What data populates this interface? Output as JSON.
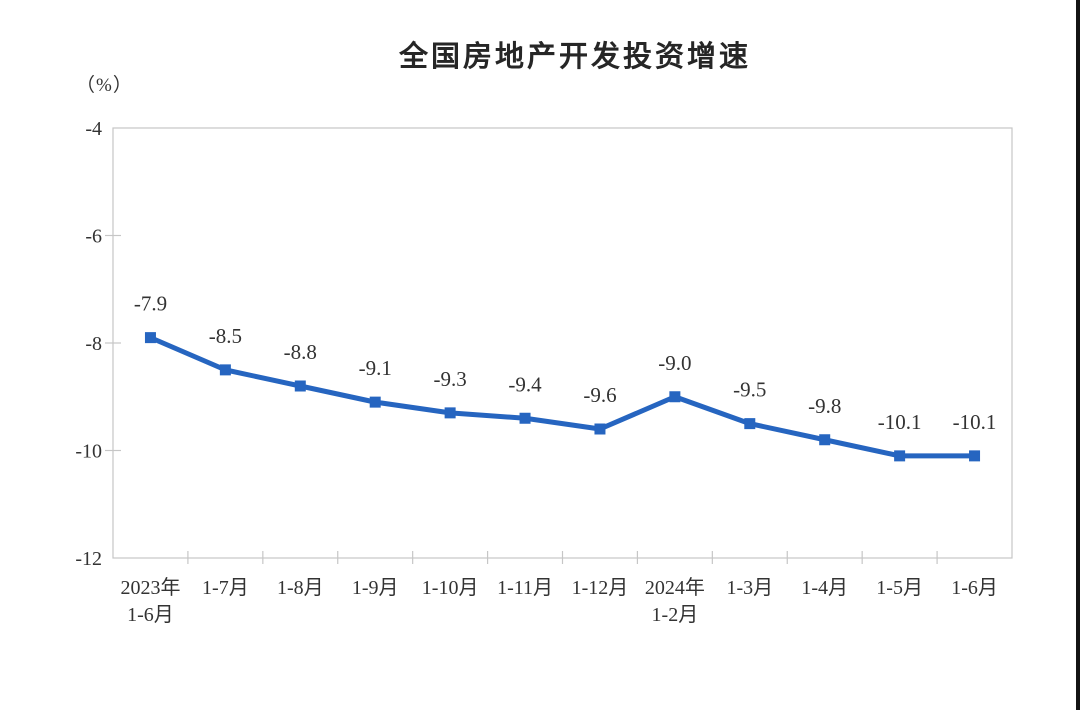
{
  "window": {
    "background": "#ffffff",
    "right_edge_bar_color": "#141414"
  },
  "chart_data": {
    "type": "line",
    "title": "全国房地产开发投资增速",
    "unit_label": "（%）",
    "categories": [
      "2023年\n1-6月",
      "1-7月",
      "1-8月",
      "1-9月",
      "1-10月",
      "1-11月",
      "1-12月",
      "2024年\n1-2月",
      "1-3月",
      "1-4月",
      "1-5月",
      "1-6月"
    ],
    "values": [
      -7.9,
      -8.5,
      -8.8,
      -9.1,
      -9.3,
      -9.4,
      -9.6,
      -9.0,
      -9.5,
      -9.8,
      -10.1,
      -10.1
    ],
    "data_labels": [
      "-7.9",
      "-8.5",
      "-8.8",
      "-9.1",
      "-9.3",
      "-9.4",
      "-9.6",
      "-9.0",
      "-9.5",
      "-9.8",
      "-10.1",
      "-10.1"
    ],
    "ylim": [
      -12,
      -4
    ],
    "ytick_labels": [
      "-4",
      "-6",
      "-8",
      "-10",
      "-12"
    ],
    "ytick_values": [
      -4,
      -6,
      -8,
      -10,
      -12
    ],
    "grid": false,
    "legend": "none",
    "marker_shape": "square",
    "line_color": "#2665C0",
    "marker_color": "#2665C0",
    "axis_color": "#c6c6c6",
    "label_color": "#333333",
    "title_color": "#262626"
  }
}
